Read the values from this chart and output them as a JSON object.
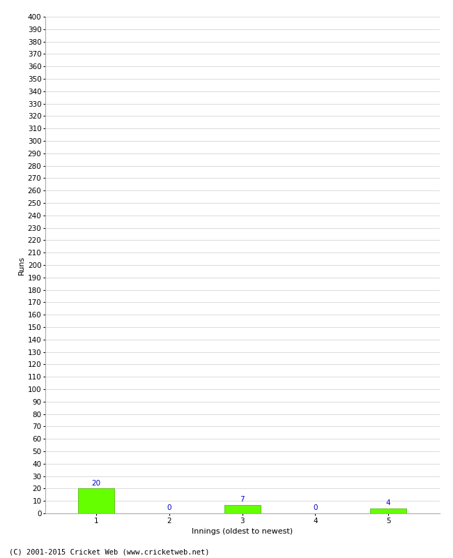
{
  "categories": [
    1,
    2,
    3,
    4,
    5
  ],
  "values": [
    20,
    0,
    7,
    0,
    4
  ],
  "bar_color": "#66ff00",
  "bar_edge_color": "#44aa00",
  "xlabel": "Innings (oldest to newest)",
  "ylabel": "Runs",
  "ylim": [
    0,
    400
  ],
  "annotation_color": "#0000cc",
  "annotation_fontsize": 7.5,
  "background_color": "#ffffff",
  "grid_color": "#cccccc",
  "footer": "(C) 2001-2015 Cricket Web (www.cricketweb.net)",
  "footer_fontsize": 7.5,
  "axis_label_fontsize": 8,
  "tick_fontsize": 7.5
}
